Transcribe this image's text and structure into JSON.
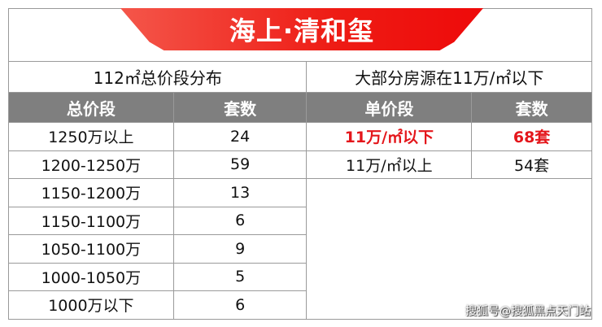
{
  "title": "海上·清和玺",
  "left": {
    "heading": "112㎡总价段分布",
    "col1": "总价段",
    "col2": "套数",
    "rows": [
      [
        "1250万以上",
        "24"
      ],
      [
        "1200-1250万",
        "59"
      ],
      [
        "1150-1200万",
        "13"
      ],
      [
        "1150-1100万",
        "6"
      ],
      [
        "1050-1100万",
        "9"
      ],
      [
        "1000-1050万",
        "5"
      ],
      [
        "1000万以下",
        "6"
      ]
    ]
  },
  "right": {
    "heading": "大部分房源在11万/㎡以下",
    "col1": "单价段",
    "col2": "套数",
    "rows": [
      [
        "11万/㎡以下",
        "68套"
      ],
      [
        "11万/㎡以上",
        "54套"
      ]
    ]
  },
  "highlight_color": "#e4161b",
  "watermark": "搜狐号@搜狐黑点天门站"
}
